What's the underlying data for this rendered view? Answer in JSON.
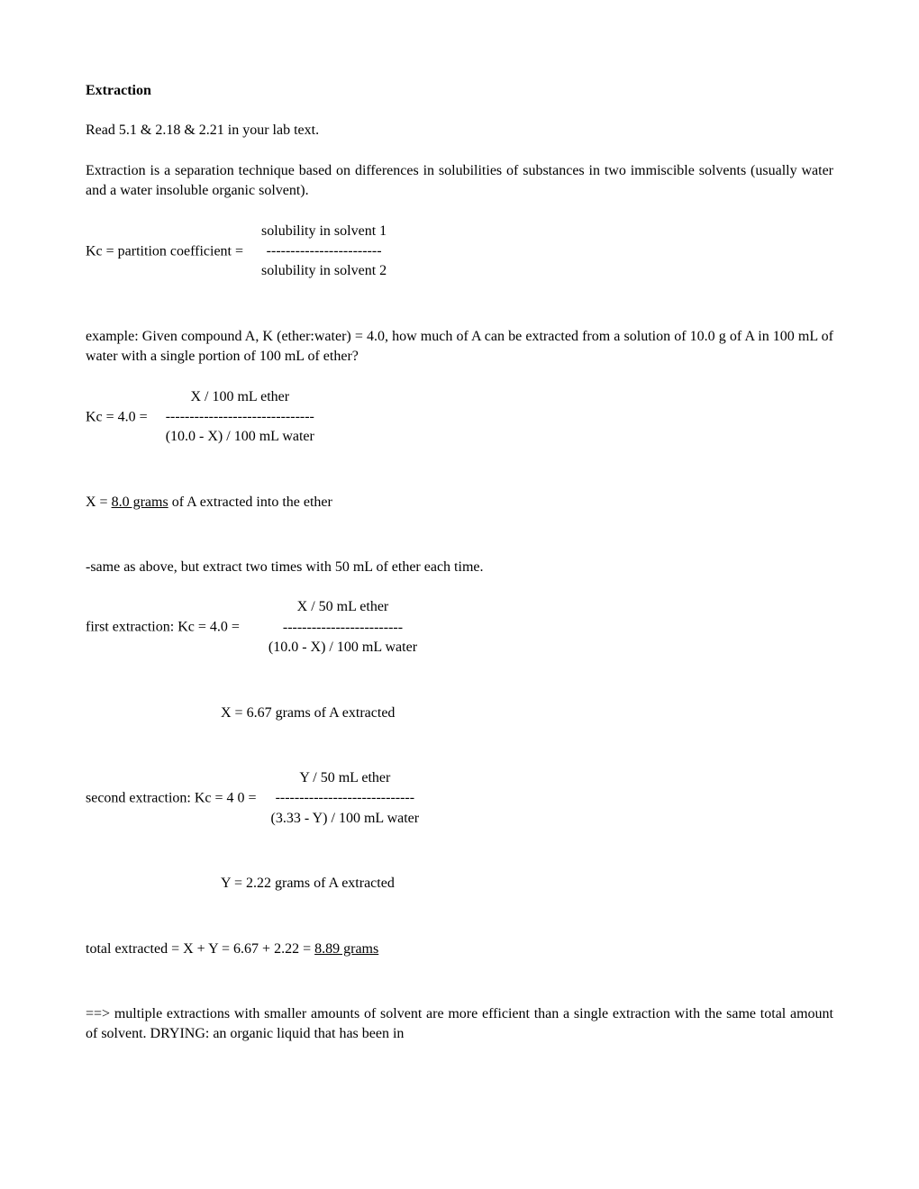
{
  "title": "Extraction",
  "readLine": "Read 5.1 & 2.18 & 2.21 in your lab text.",
  "intro": "Extraction is a separation technique based on differences in solubilities of substances in two immiscible solvents (usually water and a water insoluble organic solvent).",
  "kcDef": {
    "left": "Kc = partition coefficient =",
    "top": "solubility in solvent 1",
    "div": "------------------------",
    "bot": "solubility in solvent 2"
  },
  "example": "example:  Given compound A, K  (ether:water) = 4.0, how much of A can be extracted from a solution of 10.0 g of A in 100 mL of water with a single portion of 100 mL of ether?",
  "calc1": {
    "left": "Kc  =  4.0  =",
    "top": "X / 100 mL ether",
    "div": "-------------------------------",
    "bot": "(10.0 - X) / 100 mL water"
  },
  "result1a": "X = ",
  "result1b": "8.0 grams",
  "result1c": " of A extracted into the ether",
  "sameAs": "-same as above, but extract two times with 50 mL of ether each time.",
  "calc2": {
    "left": "first extraction:   Kc  =  4.0  =",
    "top": "X / 50 mL ether",
    "div": "-------------------------",
    "bot": "(10.0 - X) / 100 mL water"
  },
  "result2": "X = 6.67 grams of A extracted",
  "calc3": {
    "left": "second extraction:  Kc =  4 0  =",
    "top": "Y / 50 mL ether",
    "div": "-----------------------------",
    "bot": "(3.33 - Y) / 100 mL water"
  },
  "result3": "Y = 2.22 grams of A extracted",
  "total1": "total extracted =  X + Y = 6.67 + 2.22 = ",
  "total2": "8.89 grams",
  "conclusion": "==>   multiple extractions with smaller amounts of solvent are more efficient than a single extraction with the same total amount of solvent. DRYING:  an organic liquid that has been in"
}
